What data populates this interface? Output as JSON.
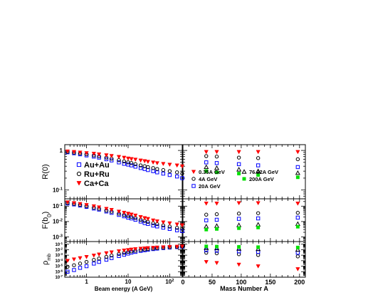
{
  "chart_data": {
    "type": "scatter",
    "left_column": {
      "xlabel": "Beam energy (A GeV)",
      "xscale": "log",
      "xlim": [
        0.3,
        200
      ],
      "xticks": [
        1,
        10,
        100
      ],
      "xtick_labels": [
        "1",
        "10",
        "10^2"
      ],
      "legend_placement": "lower-left of top panel",
      "legend": [
        {
          "label": "Au+Au",
          "marker": "open-square",
          "color": "#0000ff"
        },
        {
          "label": "Ru+Ru",
          "marker": "open-circle",
          "color": "#000000"
        },
        {
          "label": "Ca+Ca",
          "marker": "filled-triangle-down",
          "color": "#ff0000"
        }
      ]
    },
    "right_column": {
      "xlabel": "Mass Number A",
      "xscale": "linear",
      "xlim": [
        0,
        210
      ],
      "xticks": [
        0,
        50,
        100,
        150,
        200
      ],
      "xtick_labels": [
        "0",
        "50",
        "100",
        "150",
        "200"
      ],
      "x_points": [
        40,
        58,
        96,
        129,
        197
      ],
      "legend": [
        {
          "label": "0.35A GeV",
          "marker": "filled-triangle-down",
          "color": "#ff0000"
        },
        {
          "label": "76.92A GeV",
          "marker": "open-triangle-up",
          "color": "#000000"
        },
        {
          "label": "4A GeV",
          "marker": "open-circle",
          "color": "#000000"
        },
        {
          "label": "200A GeV",
          "marker": "filled-square",
          "color": "#00e000"
        },
        {
          "label": "20A GeV",
          "marker": "open-square",
          "color": "#0000ff"
        }
      ]
    },
    "panels": [
      {
        "id": "R0",
        "ylabel": "R(0)",
        "yscale": "log",
        "ylim": [
          0.06,
          1.4
        ],
        "yticks": [
          1,
          0.1
        ],
        "ytick_labels": [
          "1",
          "10^-1"
        ],
        "energy_series": [
          {
            "name": "Au+Au",
            "x": [
              0.35,
              0.5,
              0.7,
              1,
              1.5,
              2,
              3,
              4,
              6,
              8,
              10,
              12,
              15,
              20,
              25,
              30,
              40,
              50,
              70,
              100,
              150,
              200
            ],
            "y": [
              0.9,
              0.85,
              0.8,
              0.75,
              0.7,
              0.66,
              0.6,
              0.56,
              0.5,
              0.46,
              0.44,
              0.42,
              0.39,
              0.36,
              0.34,
              0.32,
              0.3,
              0.28,
              0.26,
              0.24,
              0.22,
              0.2
            ]
          },
          {
            "name": "Ru+Ru",
            "x": [
              0.35,
              0.5,
              0.7,
              1,
              1.5,
              2,
              3,
              4,
              6,
              8,
              10,
              12,
              15,
              20,
              25,
              30,
              40,
              50,
              70,
              100,
              150,
              200
            ],
            "y": [
              0.92,
              0.88,
              0.84,
              0.8,
              0.75,
              0.71,
              0.66,
              0.62,
              0.57,
              0.53,
              0.5,
              0.48,
              0.45,
              0.42,
              0.4,
              0.38,
              0.36,
              0.34,
              0.32,
              0.3,
              0.28,
              0.26
            ]
          },
          {
            "name": "Ca+Ca",
            "x": [
              0.35,
              0.5,
              0.7,
              1,
              1.5,
              2,
              3,
              4,
              6,
              8,
              10,
              12,
              15,
              20,
              25,
              30,
              40,
              50,
              70,
              100,
              150,
              200
            ],
            "y": [
              0.95,
              0.92,
              0.89,
              0.86,
              0.83,
              0.8,
              0.76,
              0.73,
              0.69,
              0.66,
              0.63,
              0.61,
              0.59,
              0.56,
              0.54,
              0.52,
              0.5,
              0.48,
              0.46,
              0.44,
              0.42,
              0.4
            ]
          }
        ],
        "mass_series": [
          {
            "name": "0.35A GeV",
            "y": [
              0.92,
              0.92,
              0.92,
              0.92,
              0.92
            ]
          },
          {
            "name": "4A GeV",
            "y": [
              0.72,
              0.7,
              0.66,
              0.64,
              0.6
            ]
          },
          {
            "name": "20A GeV",
            "y": [
              0.5,
              0.48,
              0.45,
              0.42,
              0.38
            ]
          },
          {
            "name": "76.92A GeV",
            "y": [
              0.38,
              0.36,
              0.33,
              0.3,
              0.27
            ]
          },
          {
            "name": "200A GeV",
            "y": [
              0.3,
              0.28,
              0.26,
              0.24,
              0.21
            ]
          }
        ]
      },
      {
        "id": "Fb0",
        "ylabel": "F(b0)",
        "yscale": "log",
        "ylim": [
          0.0005,
          0.3
        ],
        "yticks": [
          0.1,
          0.01,
          0.001
        ],
        "ytick_labels": [
          "10^-1",
          "10^-2",
          "10^-3"
        ],
        "energy_series": [
          {
            "name": "Au+Au",
            "x": [
              0.35,
              0.5,
              0.7,
              1,
              1.5,
              2,
              3,
              4,
              6,
              8,
              10,
              12,
              15,
              20,
              25,
              30,
              40,
              50,
              70,
              100,
              150,
              200
            ],
            "y": [
              0.15,
              0.13,
              0.11,
              0.09,
              0.07,
              0.06,
              0.045,
              0.037,
              0.027,
              0.022,
              0.018,
              0.016,
              0.013,
              0.01,
              0.008,
              0.007,
              0.0055,
              0.0048,
              0.004,
              0.0033,
              0.0027,
              0.0024
            ]
          },
          {
            "name": "Ru+Ru",
            "x": [
              0.35,
              0.5,
              0.7,
              1,
              1.5,
              2,
              3,
              4,
              6,
              8,
              10,
              12,
              15,
              20,
              25,
              30,
              40,
              50,
              70,
              100,
              150,
              200
            ],
            "y": [
              0.16,
              0.14,
              0.12,
              0.1,
              0.08,
              0.068,
              0.052,
              0.044,
              0.033,
              0.027,
              0.023,
              0.02,
              0.017,
              0.013,
              0.011,
              0.0095,
              0.0078,
              0.0068,
              0.0056,
              0.0047,
              0.0039,
              0.0034
            ]
          },
          {
            "name": "Ca+Ca",
            "x": [
              0.35,
              0.5,
              0.7,
              1,
              1.5,
              2,
              3,
              4,
              6,
              8,
              10,
              12,
              15,
              20,
              25,
              30,
              40,
              50,
              70,
              100,
              150,
              200
            ],
            "y": [
              0.18,
              0.16,
              0.14,
              0.12,
              0.1,
              0.085,
              0.068,
              0.058,
              0.045,
              0.038,
              0.033,
              0.029,
              0.025,
              0.02,
              0.017,
              0.015,
              0.012,
              0.0105,
              0.009,
              0.0078,
              0.0066,
              0.0058
            ]
          }
        ],
        "mass_series": [
          {
            "name": "0.35A GeV",
            "y": [
              0.15,
              0.15,
              0.16,
              0.16,
              0.15
            ]
          },
          {
            "name": "4A GeV",
            "y": [
              0.028,
              0.03,
              0.033,
              0.035,
              0.037
            ]
          },
          {
            "name": "20A GeV",
            "y": [
              0.012,
              0.013,
              0.015,
              0.016,
              0.018
            ]
          },
          {
            "name": "76.92A GeV",
            "y": [
              0.0048,
              0.0052,
              0.0058,
              0.0063,
              0.007
            ]
          },
          {
            "name": "200A GeV",
            "y": [
              0.003,
              0.0033,
              0.0037,
              0.0041,
              0.0046
            ]
          }
        ]
      },
      {
        "id": "rho",
        "ylabel": "ρmb",
        "yscale": "log",
        "ylim": [
          1e-07,
          0.3
        ],
        "yticks": [
          0.1,
          0.01,
          0.001,
          0.0001,
          1e-05,
          1e-06,
          1e-07
        ],
        "ytick_labels": [
          "10^-1",
          "10^-2",
          "10^-3",
          "10^-4",
          "10^-5",
          "10^-6",
          "10^-7"
        ],
        "energy_series": [
          {
            "name": "Au+Au",
            "x": [
              0.35,
              0.5,
              0.7,
              1,
              1.5,
              2,
              3,
              4,
              6,
              8,
              10,
              12,
              15,
              20,
              25,
              30,
              40,
              50,
              70,
              100,
              150,
              200
            ],
            "y": [
              1e-06,
              2e-06,
              5e-06,
              1e-05,
              3e-05,
              6e-05,
              0.00015,
              0.0003,
              0.0007,
              0.0012,
              0.002,
              0.003,
              0.004,
              0.006,
              0.008,
              0.01,
              0.013,
              0.016,
              0.02,
              0.025,
              0.03,
              0.035
            ]
          },
          {
            "name": "Ru+Ru",
            "x": [
              0.35,
              0.5,
              0.7,
              1,
              1.5,
              2,
              3,
              4,
              6,
              8,
              10,
              12,
              15,
              20,
              25,
              30,
              40,
              50,
              70,
              100,
              150,
              200
            ],
            "y": [
              8e-06,
              1.5e-05,
              3e-05,
              6e-05,
              0.00014,
              0.00025,
              0.0005,
              0.0009,
              0.0017,
              0.0028,
              0.004,
              0.005,
              0.0065,
              0.009,
              0.011,
              0.013,
              0.016,
              0.019,
              0.023,
              0.027,
              0.032,
              0.036
            ]
          },
          {
            "name": "Ca+Ca",
            "x": [
              0.35,
              0.5,
              0.7,
              1,
              1.5,
              2,
              3,
              4,
              6,
              8,
              10,
              12,
              15,
              20,
              25,
              30,
              40,
              50,
              70,
              100,
              150,
              200
            ],
            "y": [
              0.0001,
              0.00018,
              0.0003,
              0.0005,
              0.0009,
              0.0014,
              0.0024,
              0.0035,
              0.0055,
              0.0075,
              0.009,
              0.011,
              0.013,
              0.016,
              0.018,
              0.02,
              0.023,
              0.026,
              0.029,
              0.032,
              0.036,
              0.04
            ]
          }
        ],
        "mass_series": [
          {
            "name": "0.35A GeV",
            "y": [
              6e-05,
              4e-05,
              2e-05,
              1e-05,
              3e-06
            ]
          },
          {
            "name": "4A GeV",
            "y": [
              0.0028,
              0.0022,
              0.0015,
              0.0011,
              0.0006
            ]
          },
          {
            "name": "20A GeV",
            "y": [
              0.008,
              0.0065,
              0.005,
              0.004,
              0.0028
            ]
          },
          {
            "name": "76.92A GeV",
            "y": [
              0.02,
              0.018,
              0.015,
              0.013,
              0.01
            ]
          },
          {
            "name": "200A GeV",
            "y": [
              0.04,
              0.036,
              0.032,
              0.029,
              0.025
            ]
          }
        ]
      }
    ]
  }
}
